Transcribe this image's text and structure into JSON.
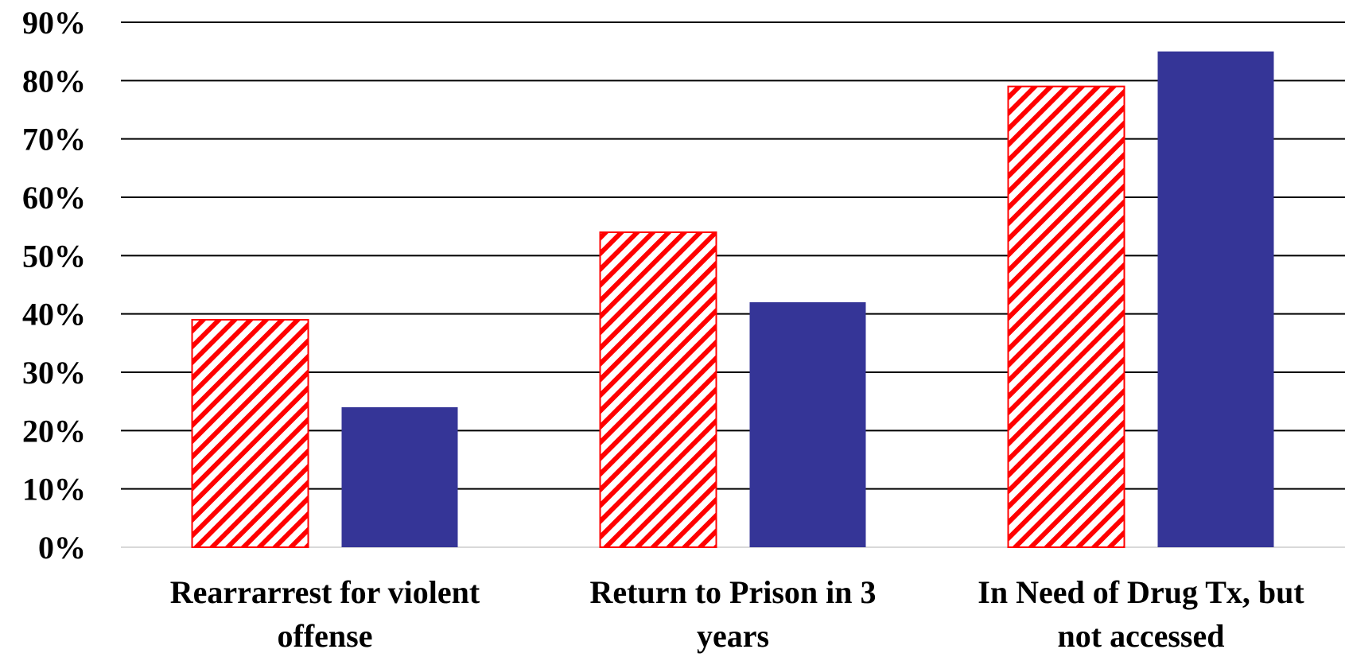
{
  "chart_data": {
    "type": "bar",
    "categories": [
      [
        "Rearrarrest for violent",
        "offense"
      ],
      [
        "Return to Prison in 3",
        "years"
      ],
      [
        "In Need of Drug Tx, but",
        "not accessed"
      ]
    ],
    "series": [
      {
        "values": [
          39,
          54,
          79
        ],
        "color": "#ff0000",
        "pattern": "diagonal-hatch"
      },
      {
        "values": [
          24,
          42,
          85
        ],
        "color": "#353597",
        "pattern": "solid"
      }
    ],
    "y_ticks": [
      "0%",
      "10%",
      "20%",
      "30%",
      "40%",
      "50%",
      "60%",
      "70%",
      "80%",
      "90%"
    ],
    "ylim": [
      0,
      90
    ],
    "grid": true,
    "legend": "none"
  }
}
